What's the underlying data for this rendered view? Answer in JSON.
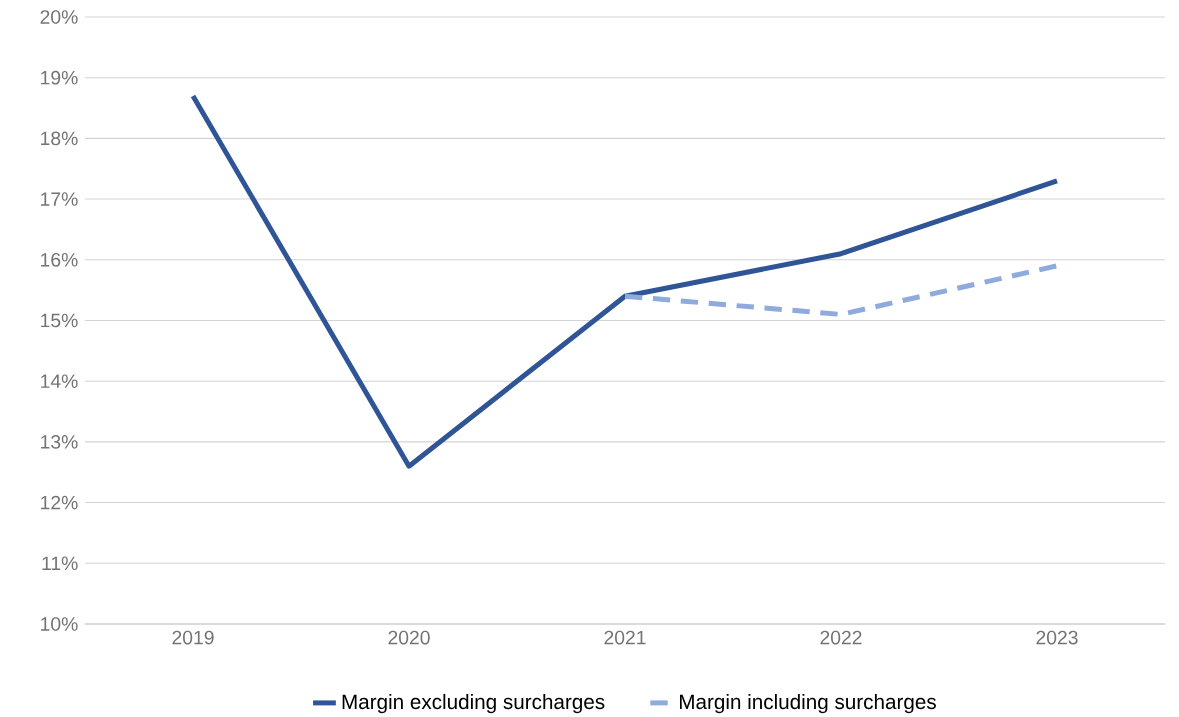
{
  "chart_data": {
    "type": "line",
    "categories": [
      "2019",
      "2020",
      "2021",
      "2022",
      "2023"
    ],
    "series": [
      {
        "name": "Margin excluding surcharges",
        "color": "#2f5597",
        "line_style": "solid",
        "values": [
          18.7,
          12.6,
          15.4,
          16.1,
          17.3
        ]
      },
      {
        "name": "Margin including surcharges",
        "color": "#8faadc",
        "line_style": "dashed",
        "values": [
          null,
          null,
          15.4,
          15.1,
          15.9
        ]
      }
    ],
    "ylim": [
      10,
      20
    ],
    "yticks": [
      {
        "value": 10,
        "label": "10%"
      },
      {
        "value": 11,
        "label": "11%"
      },
      {
        "value": 12,
        "label": "12%"
      },
      {
        "value": 13,
        "label": "13%"
      },
      {
        "value": 14,
        "label": "14%"
      },
      {
        "value": 15,
        "label": "15%"
      },
      {
        "value": 16,
        "label": "16%"
      },
      {
        "value": 17,
        "label": "17%"
      },
      {
        "value": 18,
        "label": "18%"
      },
      {
        "value": 19,
        "label": "19%"
      },
      {
        "value": 20,
        "label": "20%"
      }
    ],
    "grid": "y",
    "legend": "bottom"
  }
}
